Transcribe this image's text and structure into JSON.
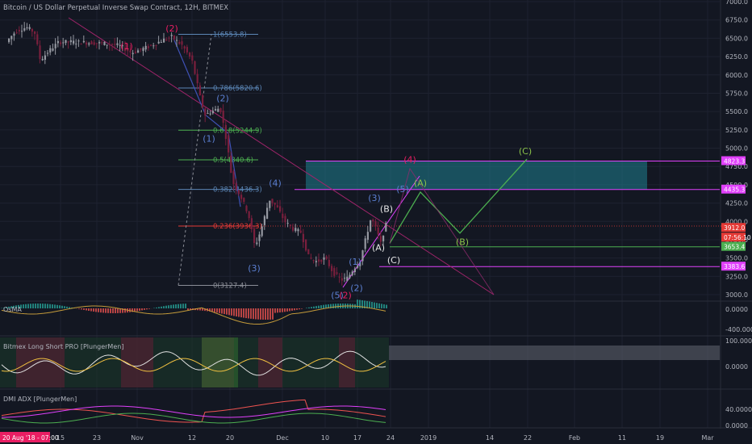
{
  "header": {
    "title": "Bitcoin / US Dollar Perpetual Inverse Swap Contract, 12H, BITMEX"
  },
  "colors": {
    "background": "#131722",
    "grid": "#1e2230",
    "axis_text": "#b2b5be",
    "candle_up": "#9598a1",
    "candle_down": "#7a1f3d",
    "fib_red": "#e53935",
    "fib_green": "#4caf50",
    "fib_blue": "#5b86b6",
    "wave_green": "#4caf50",
    "magenta": "#e040fb",
    "zone_fill": "#1f7f8f",
    "price_tag": "#e53935",
    "date_tag": "#e91e63",
    "bitmex_gray": "#5c5f6a"
  },
  "price_axis": {
    "ticks": [
      "7000.0",
      "6750.0",
      "6500.0",
      "6250.0",
      "6000.0",
      "5750.0",
      "5500.0",
      "5250.0",
      "5000.0",
      "4750.0",
      "4500.0",
      "4250.0",
      "4000.0",
      "3750.0",
      "3500.0",
      "3250.0",
      "3000.0"
    ],
    "tags": [
      {
        "label": "4823.3",
        "price": 4823.3,
        "style": "magenta"
      },
      {
        "label": "4435.3",
        "price": 4435.3,
        "style": "magenta"
      },
      {
        "label": "3912.0",
        "price": 3912.0,
        "style": "red"
      },
      {
        "label": "07:56:10",
        "price": 3780,
        "style": "red"
      },
      {
        "label": "3653.4",
        "price": 3653.4,
        "style": "green"
      },
      {
        "label": "3383.6",
        "price": 3383.6,
        "style": "magenta"
      }
    ]
  },
  "time_axis": {
    "date_tag": "20 Aug '18 - 07:00",
    "labels": [
      {
        "label": "15",
        "t": 75
      },
      {
        "label": "23",
        "t": 120
      },
      {
        "label": "Nov",
        "t": 170
      },
      {
        "label": "12",
        "t": 238
      },
      {
        "label": "20",
        "t": 285
      },
      {
        "label": "Dec",
        "t": 350
      },
      {
        "label": "10",
        "t": 403
      },
      {
        "label": "17",
        "t": 443
      },
      {
        "label": "24",
        "t": 484
      },
      {
        "label": "2019",
        "t": 531
      },
      {
        "label": "14",
        "t": 607
      },
      {
        "label": "22",
        "t": 654
      },
      {
        "label": "Feb",
        "t": 712
      },
      {
        "label": "11",
        "t": 771
      },
      {
        "label": "19",
        "t": 818
      },
      {
        "label": "Mar",
        "t": 877
      }
    ]
  },
  "fib_levels": [
    {
      "label": "1(6553.8)",
      "price": 6553.8
    },
    {
      "label": "0.786(5820.6)",
      "price": 5820.6
    },
    {
      "label": "0.618(5244.9)",
      "price": 5244.9
    },
    {
      "label": "0.5(4840.6)",
      "price": 4840.6
    },
    {
      "label": "0.382(4436.3)",
      "price": 4436.3
    },
    {
      "label": "0.236(3936.3)",
      "price": 3936.3
    },
    {
      "label": "0(3127.4)",
      "price": 3127.4
    }
  ],
  "wave_labels": [
    {
      "text": "(2)",
      "t": 213,
      "price": 6590,
      "color": "magenta"
    },
    {
      "text": "(1)",
      "t": 157,
      "price": 6350,
      "color": "magenta"
    },
    {
      "text": "(2)",
      "t": 276,
      "price": 5640,
      "color": "blue"
    },
    {
      "text": "(1)",
      "t": 259,
      "price": 5090,
      "color": "blue"
    },
    {
      "text": "(4)",
      "t": 341,
      "price": 4480,
      "color": "blue"
    },
    {
      "text": "(3)",
      "t": 315,
      "price": 3320,
      "color": "blue"
    },
    {
      "text": "(5)",
      "t": 418,
      "price": 2950,
      "color": "blue"
    },
    {
      "text": "(2)",
      "t": 428,
      "price": 2950,
      "color": "magenta"
    },
    {
      "text": "(1)",
      "t": 440,
      "price": 3410,
      "color": "blue"
    },
    {
      "text": "(2)",
      "t": 442,
      "price": 3050,
      "color": "blue"
    },
    {
      "text": "(3)",
      "t": 464,
      "price": 4280,
      "color": "blue"
    },
    {
      "text": "(5)",
      "t": 499,
      "price": 4400,
      "color": "blue"
    },
    {
      "text": "(4)",
      "t": 508,
      "price": 4800,
      "color": "magenta"
    },
    {
      "text": "(B)",
      "t": 479,
      "price": 4130,
      "color": "white"
    },
    {
      "text": "(A)",
      "t": 469,
      "price": 3600,
      "color": "white"
    },
    {
      "text": "(C)",
      "t": 488,
      "price": 3430,
      "color": "white"
    },
    {
      "text": "(A)",
      "t": 521,
      "price": 4480,
      "color": "green"
    },
    {
      "text": "(B)",
      "t": 573,
      "price": 3680,
      "color": "green"
    },
    {
      "text": "(C)",
      "t": 651,
      "price": 4920,
      "color": "green"
    }
  ],
  "indicators": {
    "osma": {
      "name": "OsMA",
      "ticks": [
        "0.0000",
        "-400.0000"
      ]
    },
    "bitmex_ls": {
      "name": "Bitmex Long Short PRO [PlungerMen]",
      "ticks": [
        "100.0000",
        "0.0000"
      ]
    },
    "dmi": {
      "name": "DMI ADX [PlungerMen]",
      "ticks": [
        "40.0000",
        "0.0000"
      ]
    }
  },
  "chart_data": {
    "type": "candlestick",
    "title": "Bitcoin / US Dollar Perpetual Inverse Swap Contract, 12H, BITMEX",
    "ylim": [
      2900,
      7100
    ],
    "price_path": [
      {
        "t": 10,
        "p": 6450
      },
      {
        "t": 22,
        "p": 6600
      },
      {
        "t": 35,
        "p": 6650
      },
      {
        "t": 45,
        "p": 6580
      },
      {
        "t": 52,
        "p": 6200
      },
      {
        "t": 62,
        "p": 6320
      },
      {
        "t": 75,
        "p": 6450
      },
      {
        "t": 90,
        "p": 6450
      },
      {
        "t": 110,
        "p": 6440
      },
      {
        "t": 130,
        "p": 6430
      },
      {
        "t": 150,
        "p": 6400
      },
      {
        "t": 165,
        "p": 6300
      },
      {
        "t": 185,
        "p": 6380
      },
      {
        "t": 205,
        "p": 6480
      },
      {
        "t": 215,
        "p": 6520
      },
      {
        "t": 228,
        "p": 6400
      },
      {
        "t": 240,
        "p": 6200
      },
      {
        "t": 250,
        "p": 5700
      },
      {
        "t": 256,
        "p": 5450
      },
      {
        "t": 264,
        "p": 5500
      },
      {
        "t": 275,
        "p": 5550
      },
      {
        "t": 283,
        "p": 5100
      },
      {
        "t": 290,
        "p": 4550
      },
      {
        "t": 300,
        "p": 4350
      },
      {
        "t": 310,
        "p": 4100
      },
      {
        "t": 318,
        "p": 3650
      },
      {
        "t": 326,
        "p": 3900
      },
      {
        "t": 336,
        "p": 4300
      },
      {
        "t": 345,
        "p": 4200
      },
      {
        "t": 355,
        "p": 4000
      },
      {
        "t": 365,
        "p": 3900
      },
      {
        "t": 375,
        "p": 3850
      },
      {
        "t": 385,
        "p": 3500
      },
      {
        "t": 395,
        "p": 3450
      },
      {
        "t": 405,
        "p": 3500
      },
      {
        "t": 415,
        "p": 3300
      },
      {
        "t": 425,
        "p": 3200
      },
      {
        "t": 433,
        "p": 3230
      },
      {
        "t": 440,
        "p": 3350
      },
      {
        "t": 448,
        "p": 3450
      },
      {
        "t": 455,
        "p": 3750
      },
      {
        "t": 462,
        "p": 4050
      },
      {
        "t": 468,
        "p": 3900
      },
      {
        "t": 474,
        "p": 3700
      },
      {
        "t": 480,
        "p": 3950
      }
    ],
    "projection_path": [
      {
        "t": 483,
        "p": 3700
      },
      {
        "t": 521,
        "p": 4400
      },
      {
        "t": 570,
        "p": 3840
      },
      {
        "t": 653,
        "p": 4850
      }
    ]
  }
}
